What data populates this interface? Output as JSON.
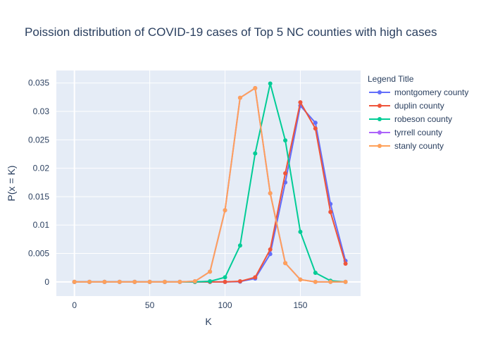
{
  "chart_data": {
    "type": "line",
    "title": "Poission distribution of COVID-19 cases of Top 5 NC counties with high cases",
    "xlabel": "K",
    "ylabel": "P(x = K)",
    "xlim": [
      -12,
      190
    ],
    "ylim": [
      -0.0025,
      0.0372
    ],
    "x_ticks": [
      0,
      50,
      100,
      150
    ],
    "y_ticks": [
      0,
      0.005,
      0.01,
      0.015,
      0.02,
      0.025,
      0.03,
      0.035
    ],
    "y_tick_labels": [
      "0",
      "0.005",
      "0.01",
      "0.015",
      "0.02",
      "0.025",
      "0.03",
      "0.035"
    ],
    "grid": true,
    "legend_title": "Legend Title",
    "legend_position": "right",
    "x": [
      0,
      10,
      20,
      30,
      40,
      50,
      60,
      70,
      80,
      90,
      100,
      110,
      120,
      130,
      140,
      150,
      160,
      170,
      180
    ],
    "series": [
      {
        "name": "montgomery county",
        "color": "#636efa",
        "values": [
          0,
          0,
          0,
          0,
          0,
          0,
          0,
          0,
          0,
          0,
          0,
          5e-05,
          0.0006,
          0.0049,
          0.0175,
          0.031,
          0.028,
          0.0137,
          0.0037
        ]
      },
      {
        "name": "duplin county",
        "color": "#ef553b",
        "values": [
          0,
          0,
          0,
          0,
          0,
          0,
          0,
          0,
          0,
          0,
          0,
          0.0001,
          0.0008,
          0.0057,
          0.0191,
          0.0316,
          0.027,
          0.0123,
          0.0032
        ]
      },
      {
        "name": "robeson county",
        "color": "#00cc96",
        "values": [
          0,
          0,
          0,
          0,
          0,
          0,
          0,
          0,
          0,
          0.0001,
          0.0008,
          0.0064,
          0.0226,
          0.0349,
          0.0249,
          0.0088,
          0.0016,
          0.0002,
          0
        ]
      },
      {
        "name": "tyrrell county",
        "color": "#ab63fa",
        "values": [
          0,
          0,
          0,
          0,
          0,
          0,
          0,
          0,
          0.0001,
          0.0018,
          0.0126,
          0.0324,
          0.0341,
          0.0156,
          0.0033,
          0.0004,
          0,
          0,
          0
        ]
      },
      {
        "name": "stanly county",
        "color": "#ffa15a",
        "values": [
          0,
          0,
          0,
          0,
          0,
          0,
          0,
          0,
          0.0001,
          0.0018,
          0.0126,
          0.0324,
          0.0341,
          0.0156,
          0.0033,
          0.0004,
          0,
          0,
          0
        ]
      }
    ]
  }
}
